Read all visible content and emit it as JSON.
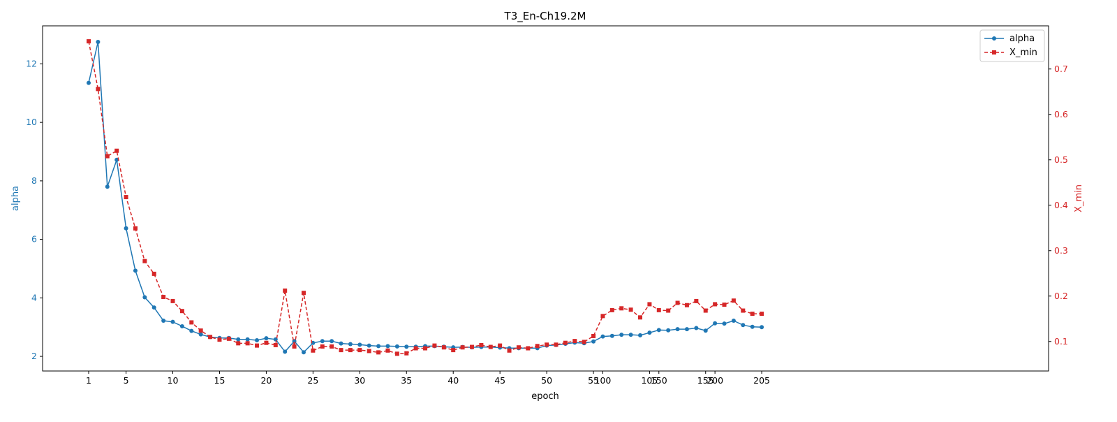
{
  "chart_data": {
    "type": "line",
    "title": "T3_En-Ch19.2M",
    "xlabel": "epoch",
    "ylabel_left": "alpha",
    "ylabel_right": "X_min",
    "x_ticks": [
      "1",
      "5",
      "10",
      "15",
      "20",
      "25",
      "30",
      "35",
      "40",
      "45",
      "50",
      "55",
      "100",
      "105",
      "150",
      "155",
      "200",
      "205"
    ],
    "y_left_ticks": [
      "2",
      "4",
      "6",
      "8",
      "10",
      "12"
    ],
    "y_right_ticks": [
      "0.1",
      "0.2",
      "0.3",
      "0.4",
      "0.5",
      "0.6",
      "0.7"
    ],
    "y_left_lim": [
      1.5,
      13.3
    ],
    "y_right_lim": [
      0.035,
      0.795
    ],
    "grid": false,
    "legend_position": "top-right",
    "colors": {
      "alpha": "#1f77b4",
      "X_min": "#d62728"
    },
    "x": [
      "1",
      "2",
      "3",
      "4",
      "5",
      "6",
      "7",
      "8",
      "9",
      "10",
      "11",
      "12",
      "13",
      "14",
      "15",
      "16",
      "17",
      "18",
      "19",
      "20",
      "21",
      "22",
      "23",
      "24",
      "25",
      "26",
      "27",
      "28",
      "29",
      "30",
      "31",
      "32",
      "33",
      "34",
      "35",
      "36",
      "37",
      "38",
      "39",
      "40",
      "41",
      "42",
      "43",
      "44",
      "45",
      "46",
      "47",
      "48",
      "49",
      "50",
      "51",
      "52",
      "53",
      "54",
      "55",
      "100",
      "101",
      "102",
      "103",
      "104",
      "105",
      "150",
      "151",
      "152",
      "153",
      "154",
      "155",
      "200",
      "201",
      "202",
      "203",
      "204",
      "205"
    ],
    "series": [
      {
        "name": "alpha",
        "axis": "left",
        "style": "solid-circle",
        "values": [
          11.35,
          12.75,
          7.8,
          8.72,
          6.38,
          4.93,
          4.02,
          3.67,
          3.22,
          3.18,
          3.03,
          2.87,
          2.75,
          2.66,
          2.63,
          2.63,
          2.58,
          2.58,
          2.55,
          2.62,
          2.58,
          2.16,
          2.52,
          2.14,
          2.46,
          2.52,
          2.52,
          2.44,
          2.42,
          2.4,
          2.37,
          2.35,
          2.35,
          2.34,
          2.33,
          2.33,
          2.35,
          2.35,
          2.33,
          2.31,
          2.32,
          2.31,
          2.32,
          2.32,
          2.3,
          2.28,
          2.28,
          2.28,
          2.28,
          2.37,
          2.39,
          2.43,
          2.47,
          2.45,
          2.51,
          2.68,
          2.7,
          2.74,
          2.74,
          2.72,
          2.81,
          2.9,
          2.89,
          2.93,
          2.93,
          2.97,
          2.88,
          3.13,
          3.12,
          3.22,
          3.07,
          3.01,
          3.0
        ]
      },
      {
        "name": "X_min",
        "axis": "right",
        "style": "dashed-square",
        "values": [
          0.761,
          0.656,
          0.508,
          0.52,
          0.418,
          0.349,
          0.277,
          0.249,
          0.198,
          0.189,
          0.167,
          0.142,
          0.124,
          0.11,
          0.104,
          0.106,
          0.096,
          0.096,
          0.091,
          0.097,
          0.092,
          0.212,
          0.089,
          0.207,
          0.08,
          0.089,
          0.089,
          0.081,
          0.081,
          0.081,
          0.079,
          0.076,
          0.08,
          0.073,
          0.074,
          0.085,
          0.085,
          0.091,
          0.087,
          0.081,
          0.087,
          0.088,
          0.092,
          0.088,
          0.091,
          0.08,
          0.087,
          0.085,
          0.09,
          0.093,
          0.093,
          0.097,
          0.101,
          0.099,
          0.112,
          0.156,
          0.169,
          0.173,
          0.17,
          0.153,
          0.182,
          0.169,
          0.168,
          0.185,
          0.18,
          0.189,
          0.168,
          0.182,
          0.181,
          0.19,
          0.168,
          0.161,
          0.161
        ]
      }
    ]
  }
}
